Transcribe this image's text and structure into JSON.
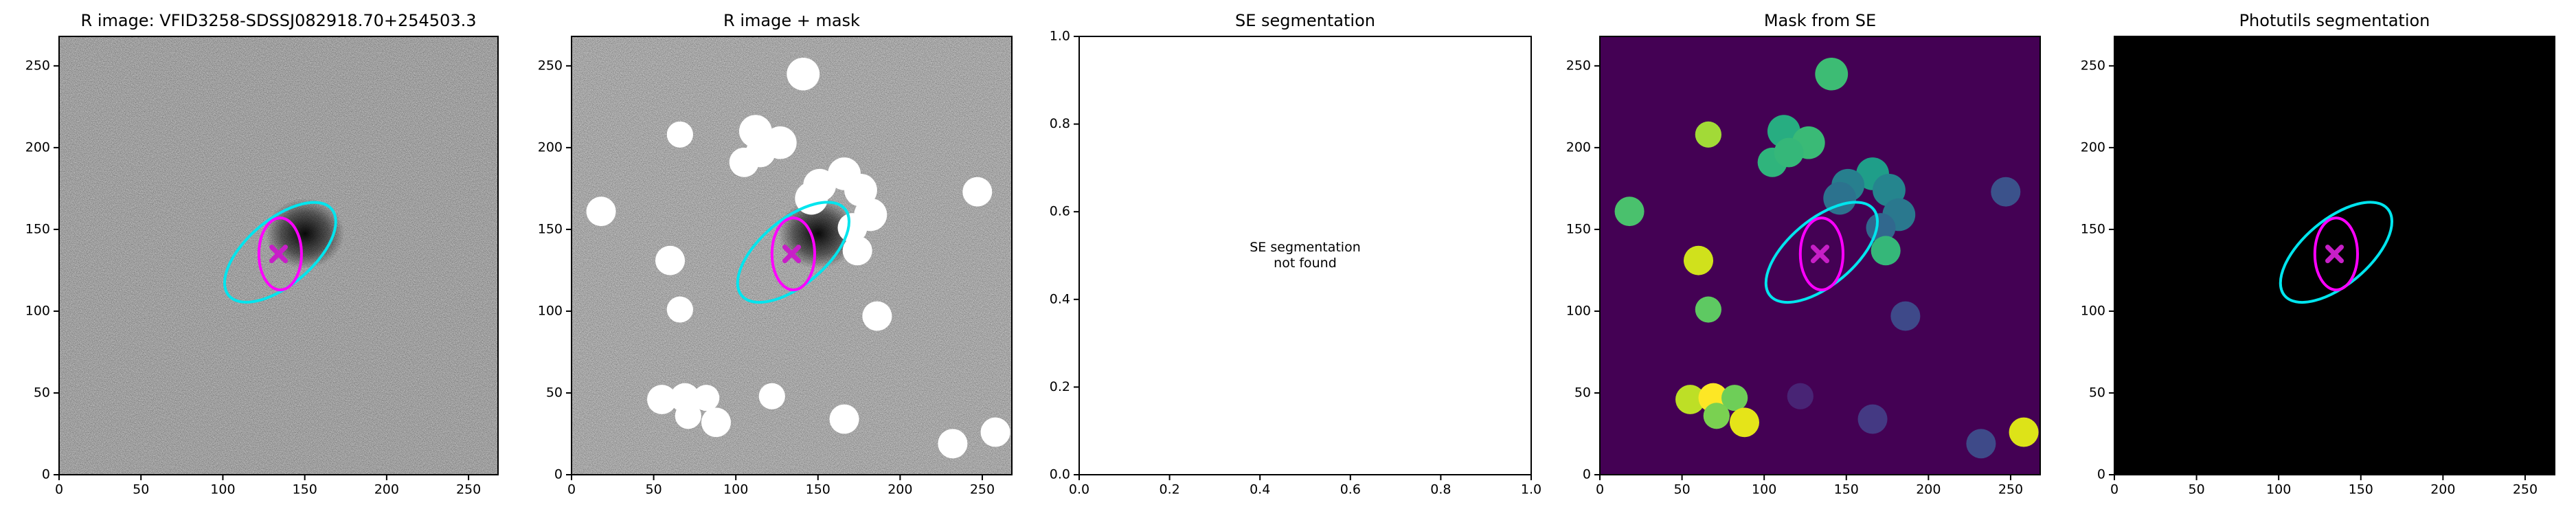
{
  "chart_data": [
    {
      "type": "image",
      "title": "R image: VFID3258-SDSSJ082918.70+254503.3",
      "background": "#666666",
      "noise": true,
      "xlim": [
        0,
        268
      ],
      "ylim": [
        0,
        268
      ],
      "xticks": [
        0,
        50,
        100,
        150,
        200,
        250
      ],
      "yticks": [
        0,
        50,
        100,
        150,
        200,
        250
      ],
      "ellipses": [
        {
          "color": "#00e5ee",
          "x": 135,
          "y": 136,
          "width": 82,
          "height": 40,
          "angle": 40
        },
        {
          "color": "#ff00ff",
          "x": 135,
          "y": 135,
          "width": 26,
          "height": 44,
          "angle": 0
        }
      ],
      "marker": {
        "x": 134,
        "y": 135,
        "color": "#c71fc7"
      }
    },
    {
      "type": "image",
      "title": "R image + mask",
      "background": "#808080",
      "noise": true,
      "xlim": [
        0,
        268
      ],
      "ylim": [
        0,
        268
      ],
      "xticks": [
        0,
        50,
        100,
        150,
        200,
        250
      ],
      "yticks": [
        0,
        50,
        100,
        150,
        200,
        250
      ],
      "blob_color": "#ffffff",
      "blobs": [
        [
          141,
          245,
          10
        ],
        [
          112,
          210,
          10
        ],
        [
          127,
          203,
          10
        ],
        [
          66,
          208,
          8
        ],
        [
          105,
          191,
          9
        ],
        [
          115,
          197,
          9
        ],
        [
          18,
          161,
          9
        ],
        [
          166,
          184,
          10
        ],
        [
          176,
          174,
          10
        ],
        [
          151,
          177,
          10
        ],
        [
          182,
          159,
          10
        ],
        [
          146,
          169,
          10
        ],
        [
          171,
          151,
          9
        ],
        [
          174,
          137,
          9
        ],
        [
          247,
          173,
          9
        ],
        [
          60,
          131,
          9
        ],
        [
          66,
          101,
          8
        ],
        [
          186,
          97,
          9
        ],
        [
          55,
          46,
          9
        ],
        [
          69,
          47,
          9
        ],
        [
          82,
          47,
          8
        ],
        [
          71,
          36,
          8
        ],
        [
          88,
          32,
          9
        ],
        [
          122,
          48,
          8
        ],
        [
          166,
          34,
          9
        ],
        [
          232,
          19,
          9
        ],
        [
          258,
          26,
          9
        ]
      ],
      "ellipses": [
        {
          "color": "#00e5ee",
          "x": 135,
          "y": 136,
          "width": 82,
          "height": 40,
          "angle": 40
        },
        {
          "color": "#ff00ff",
          "x": 135,
          "y": 135,
          "width": 26,
          "height": 44,
          "angle": 0
        }
      ],
      "marker": {
        "x": 134,
        "y": 135,
        "color": "#c71fc7"
      }
    },
    {
      "type": "image",
      "title": "SE segmentation",
      "background": "#ffffff",
      "annotation": "SE segmentation\nnot found",
      "xlim": [
        0,
        1
      ],
      "ylim": [
        0,
        1
      ],
      "xticks": [
        {
          "value": 0,
          "label": "0.0"
        },
        {
          "value": 0.2,
          "label": "0.2"
        },
        {
          "value": 0.4,
          "label": "0.4"
        },
        {
          "value": 0.6,
          "label": "0.6"
        },
        {
          "value": 0.8,
          "label": "0.8"
        },
        {
          "value": 1,
          "label": "1.0"
        }
      ],
      "yticks": [
        {
          "value": 0,
          "label": "0.0"
        },
        {
          "value": 0.2,
          "label": "0.2"
        },
        {
          "value": 0.4,
          "label": "0.4"
        },
        {
          "value": 0.6,
          "label": "0.6"
        },
        {
          "value": 0.8,
          "label": "0.8"
        },
        {
          "value": 1,
          "label": "1.0"
        }
      ]
    },
    {
      "type": "image",
      "title": "Mask from SE",
      "background": "#440154",
      "xlim": [
        0,
        268
      ],
      "ylim": [
        0,
        268
      ],
      "xticks": [
        0,
        50,
        100,
        150,
        200,
        250
      ],
      "yticks": [
        0,
        50,
        100,
        150,
        200,
        250
      ],
      "blobs": [
        [
          141,
          245,
          10
        ],
        [
          112,
          210,
          10
        ],
        [
          127,
          203,
          10
        ],
        [
          66,
          208,
          8
        ],
        [
          105,
          191,
          9
        ],
        [
          115,
          197,
          9
        ],
        [
          18,
          161,
          9
        ],
        [
          166,
          184,
          10
        ],
        [
          176,
          174,
          10
        ],
        [
          151,
          177,
          10
        ],
        [
          182,
          159,
          10
        ],
        [
          146,
          169,
          10
        ],
        [
          171,
          151,
          9
        ],
        [
          174,
          137,
          9
        ],
        [
          247,
          173,
          9
        ],
        [
          60,
          131,
          9
        ],
        [
          66,
          101,
          8
        ],
        [
          186,
          97,
          9
        ],
        [
          55,
          46,
          9
        ],
        [
          69,
          47,
          9
        ],
        [
          82,
          47,
          8
        ],
        [
          71,
          36,
          8
        ],
        [
          88,
          32,
          9
        ],
        [
          122,
          48,
          8
        ],
        [
          166,
          34,
          9
        ],
        [
          232,
          19,
          9
        ],
        [
          258,
          26,
          9
        ]
      ],
      "blob_colors": [
        "#3dbc74",
        "#27ad81",
        "#3aba76",
        "#a2da37",
        "#2fb47c",
        "#35b779",
        "#4ac16d",
        "#1f9e89",
        "#25858e",
        "#277f8e",
        "#2a788e",
        "#2c728e",
        "#31688e",
        "#35b779",
        "#3b528b",
        "#d0e11c",
        "#5ec962",
        "#3e4989",
        "#bddf26",
        "#fde725",
        "#6ece58",
        "#7ad151",
        "#e5e419",
        "#482475",
        "#443983",
        "#3e4a89",
        "#dde318"
      ],
      "ellipses": [
        {
          "color": "#00e5ee",
          "x": 135,
          "y": 136,
          "width": 82,
          "height": 40,
          "angle": 40
        },
        {
          "color": "#ff00ff",
          "x": 135,
          "y": 135,
          "width": 26,
          "height": 44,
          "angle": 0
        }
      ],
      "marker": {
        "x": 134,
        "y": 135,
        "color": "#c71fc7"
      }
    },
    {
      "type": "image",
      "title": "Photutils segmentation",
      "background": "#000000",
      "xlim": [
        0,
        268
      ],
      "ylim": [
        0,
        268
      ],
      "xticks": [
        0,
        50,
        100,
        150,
        200,
        250
      ],
      "yticks": [
        0,
        50,
        100,
        150,
        200,
        250
      ],
      "ellipses": [
        {
          "color": "#00e5ee",
          "x": 135,
          "y": 136,
          "width": 82,
          "height": 40,
          "angle": 40
        },
        {
          "color": "#ff00ff",
          "x": 135,
          "y": 135,
          "width": 26,
          "height": 44,
          "angle": 0
        }
      ],
      "marker": {
        "x": 134,
        "y": 135,
        "color": "#c71fc7"
      }
    }
  ]
}
